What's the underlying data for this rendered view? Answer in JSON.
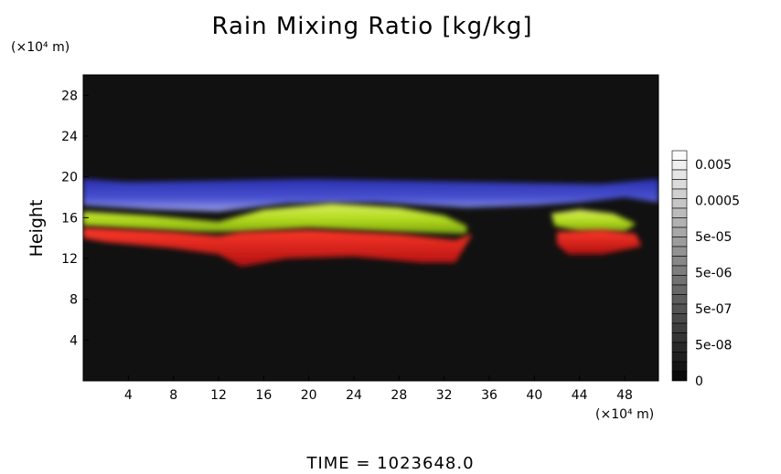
{
  "chart_data": {
    "type": "heatmap",
    "title": "Rain Mixing Ratio [kg/kg]",
    "ylabel": "Height",
    "y_unit": "(×10⁴ m)",
    "x_unit": "(×10⁴ m)",
    "footer": "TIME = 1023648.0",
    "x_ticks": [
      "4",
      "8",
      "12",
      "16",
      "20",
      "24",
      "28",
      "32",
      "36",
      "40",
      "44",
      "48"
    ],
    "y_ticks": [
      "4",
      "8",
      "12",
      "16",
      "20",
      "24",
      "28"
    ],
    "xlim": [
      0,
      51
    ],
    "ylim": [
      0,
      30
    ],
    "colorbar": {
      "labels": [
        "0.005",
        "0.0005",
        "5e-05",
        "5e-06",
        "5e-07",
        "5e-08",
        "0"
      ]
    },
    "background_color": "#111111",
    "colors": {
      "upper_band": "#3c46c8",
      "middle_band": "#b4dc1e",
      "lower_band": "#e61e1e"
    }
  }
}
